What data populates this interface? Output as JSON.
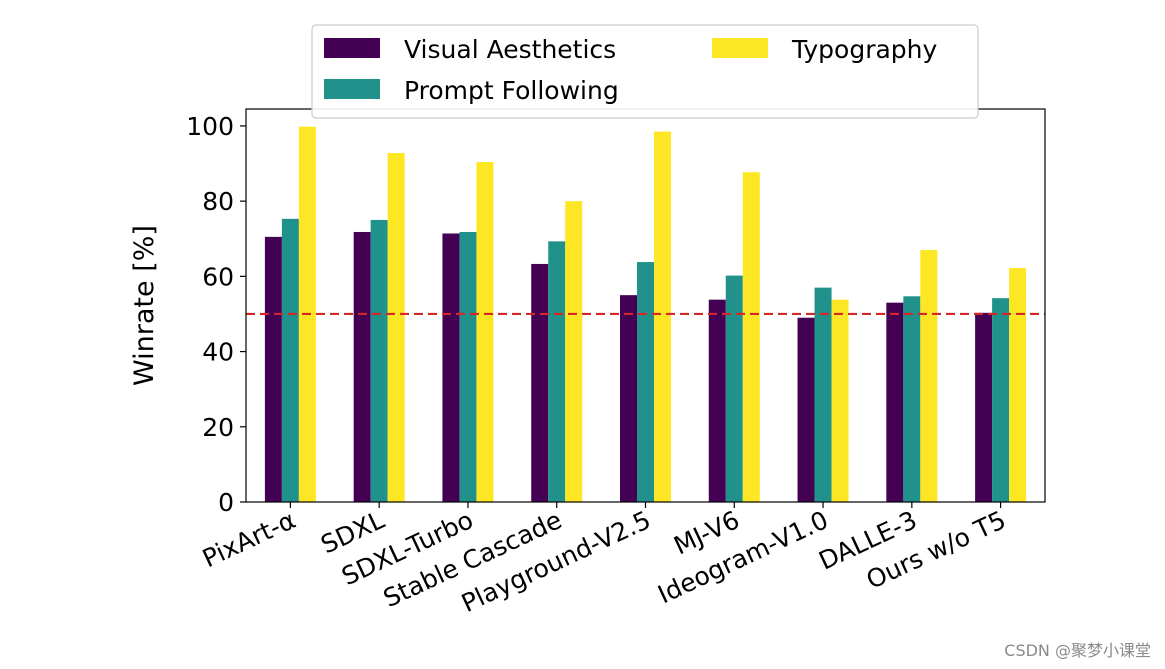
{
  "chart_data": {
    "type": "bar",
    "categories": [
      "PixArt-α",
      "SDXL",
      "SDXL-Turbo",
      "Stable Cascade",
      "Playground-V2.5",
      "MJ-V6",
      "Ideogram-V1.0",
      "DALLE-3",
      "Ours w/o T5"
    ],
    "series": [
      {
        "name": "Visual Aesthetics",
        "color": "#440154",
        "values": [
          70.5,
          71.8,
          71.4,
          63.3,
          55.0,
          53.8,
          49.0,
          53.0,
          50.3
        ]
      },
      {
        "name": "Prompt Following",
        "color": "#21918c",
        "values": [
          75.3,
          75.0,
          71.8,
          69.3,
          63.8,
          60.2,
          57.0,
          54.7,
          54.2
        ]
      },
      {
        "name": "Typography",
        "color": "#fde725",
        "values": [
          99.8,
          92.8,
          90.4,
          80.0,
          98.5,
          87.7,
          53.8,
          67.0,
          62.2
        ]
      }
    ],
    "ylabel": "Winrate [%]",
    "xlabel": "",
    "title": "",
    "ylim": [
      0,
      104.5
    ],
    "yticks": [
      0,
      20,
      40,
      60,
      80,
      100
    ],
    "reference_line": {
      "value": 50,
      "color": "#d62728",
      "style": "dashed"
    },
    "legend": {
      "placement": "top-center",
      "columns": 2
    }
  },
  "watermark": "CSDN @聚梦小课堂"
}
